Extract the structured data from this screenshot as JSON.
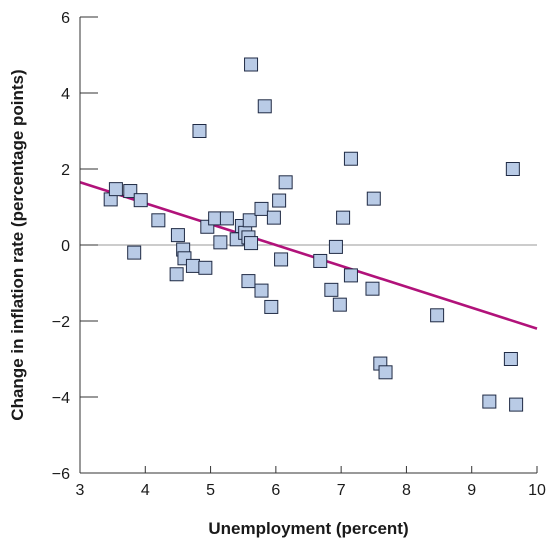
{
  "chart_data": {
    "type": "scatter",
    "title": "",
    "xlabel": "Unemployment (percent)",
    "ylabel": "Change in inflation rate (percentage points)",
    "xlim": [
      3,
      10
    ],
    "ylim": [
      -6,
      6
    ],
    "xticks": [
      "3",
      "4",
      "5",
      "6",
      "7",
      "8",
      "9",
      "10"
    ],
    "yticks": [
      "6",
      "4",
      "2",
      "0",
      "−2",
      "−4",
      "−6"
    ],
    "grid": false,
    "colors": {
      "points": "#b9cbe6",
      "point_edge": "#1f2a44",
      "trend_line": "#b1127a"
    },
    "trend_line": {
      "x": [
        3,
        10
      ],
      "y": [
        1.65,
        -2.2
      ]
    },
    "points": [
      {
        "x": 3.47,
        "y": 1.2
      },
      {
        "x": 3.55,
        "y": 1.47
      },
      {
        "x": 3.77,
        "y": 1.42
      },
      {
        "x": 3.83,
        "y": -0.2
      },
      {
        "x": 3.93,
        "y": 1.18
      },
      {
        "x": 4.2,
        "y": 0.65
      },
      {
        "x": 4.48,
        "y": -0.77
      },
      {
        "x": 4.5,
        "y": 0.26
      },
      {
        "x": 4.58,
        "y": -0.12
      },
      {
        "x": 4.6,
        "y": -0.35
      },
      {
        "x": 4.73,
        "y": -0.55
      },
      {
        "x": 4.83,
        "y": 3.0
      },
      {
        "x": 4.92,
        "y": -0.6
      },
      {
        "x": 4.95,
        "y": 0.48
      },
      {
        "x": 5.07,
        "y": 0.7
      },
      {
        "x": 5.15,
        "y": 0.07
      },
      {
        "x": 5.25,
        "y": 0.7
      },
      {
        "x": 5.4,
        "y": 0.15
      },
      {
        "x": 5.48,
        "y": 0.5
      },
      {
        "x": 5.53,
        "y": 0.32
      },
      {
        "x": 5.58,
        "y": 0.2
      },
      {
        "x": 5.58,
        "y": -0.95
      },
      {
        "x": 5.6,
        "y": 0.65
      },
      {
        "x": 5.62,
        "y": 0.05
      },
      {
        "x": 5.62,
        "y": 4.75
      },
      {
        "x": 5.78,
        "y": 0.95
      },
      {
        "x": 5.78,
        "y": -1.2
      },
      {
        "x": 5.83,
        "y": 3.65
      },
      {
        "x": 5.93,
        "y": -1.63
      },
      {
        "x": 5.97,
        "y": 0.72
      },
      {
        "x": 6.05,
        "y": 1.17
      },
      {
        "x": 6.08,
        "y": -0.38
      },
      {
        "x": 6.15,
        "y": 1.65
      },
      {
        "x": 6.68,
        "y": -0.42
      },
      {
        "x": 6.85,
        "y": -1.18
      },
      {
        "x": 6.92,
        "y": -0.05
      },
      {
        "x": 6.98,
        "y": -1.57
      },
      {
        "x": 7.03,
        "y": 0.72
      },
      {
        "x": 7.15,
        "y": 2.27
      },
      {
        "x": 7.15,
        "y": -0.8
      },
      {
        "x": 7.48,
        "y": -1.15
      },
      {
        "x": 7.5,
        "y": 1.22
      },
      {
        "x": 7.6,
        "y": -3.12
      },
      {
        "x": 7.68,
        "y": -3.35
      },
      {
        "x": 8.47,
        "y": -1.85
      },
      {
        "x": 9.27,
        "y": -4.12
      },
      {
        "x": 9.6,
        "y": -3.0
      },
      {
        "x": 9.63,
        "y": 2.0
      },
      {
        "x": 9.68,
        "y": -4.2
      }
    ]
  }
}
